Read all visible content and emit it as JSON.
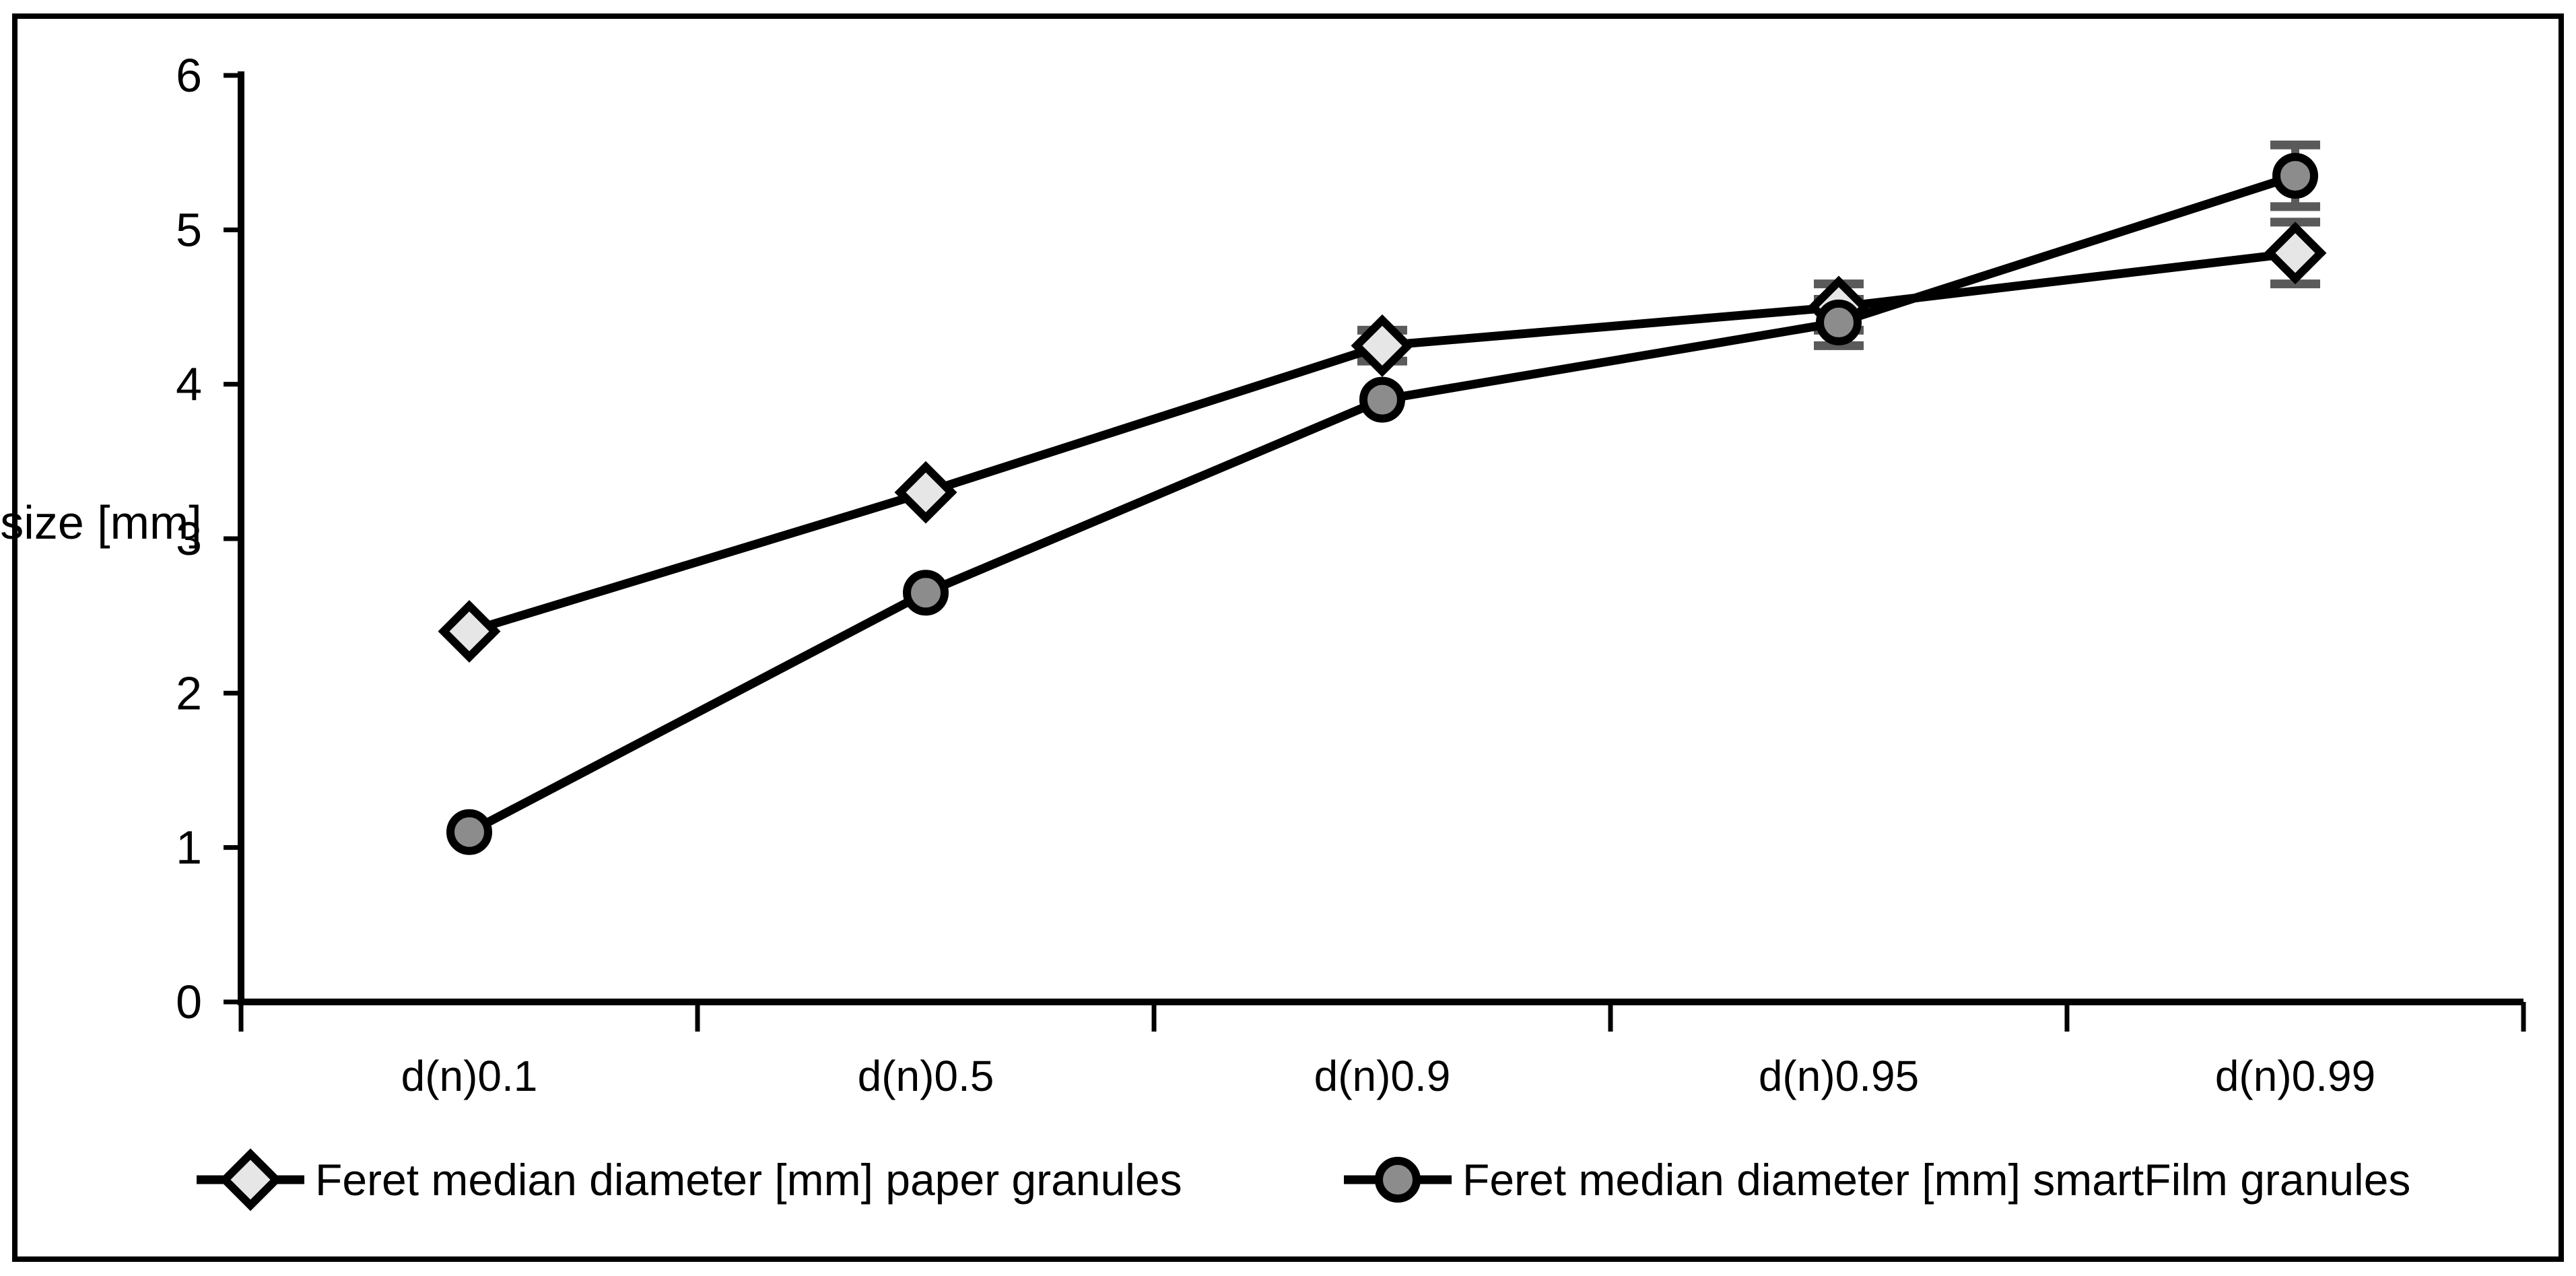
{
  "chart_data": {
    "type": "line",
    "title": "",
    "xlabel": "",
    "ylabel": "size [mm]",
    "ylim": [
      0,
      6
    ],
    "yticks": [
      0,
      1,
      2,
      3,
      4,
      5,
      6
    ],
    "grid": false,
    "legend_position": "bottom",
    "categories": [
      "d(n)0.1",
      "d(n)0.5",
      "d(n)0.9",
      "d(n)0.95",
      "d(n)0.99"
    ],
    "series": [
      {
        "name": "Feret median diameter [mm] paper granules",
        "marker": "diamond",
        "marker_fill": "#e6e6e6",
        "line_color": "#000000",
        "values": [
          2.4,
          3.3,
          4.25,
          4.5,
          4.85
        ],
        "errors": [
          0,
          0,
          0.1,
          0.15,
          0.2
        ]
      },
      {
        "name": "Feret median diameter [mm] smartFilm granules",
        "marker": "circle",
        "marker_fill": "#8c8c8c",
        "line_color": "#000000",
        "values": [
          1.1,
          2.65,
          3.9,
          4.4,
          5.35
        ],
        "errors": [
          0,
          0,
          0,
          0.15,
          0.2
        ]
      }
    ],
    "error_bar_color": "#5a5a5a",
    "axis_color": "#000000",
    "border_color": "#000000",
    "background_color": "#ffffff"
  }
}
